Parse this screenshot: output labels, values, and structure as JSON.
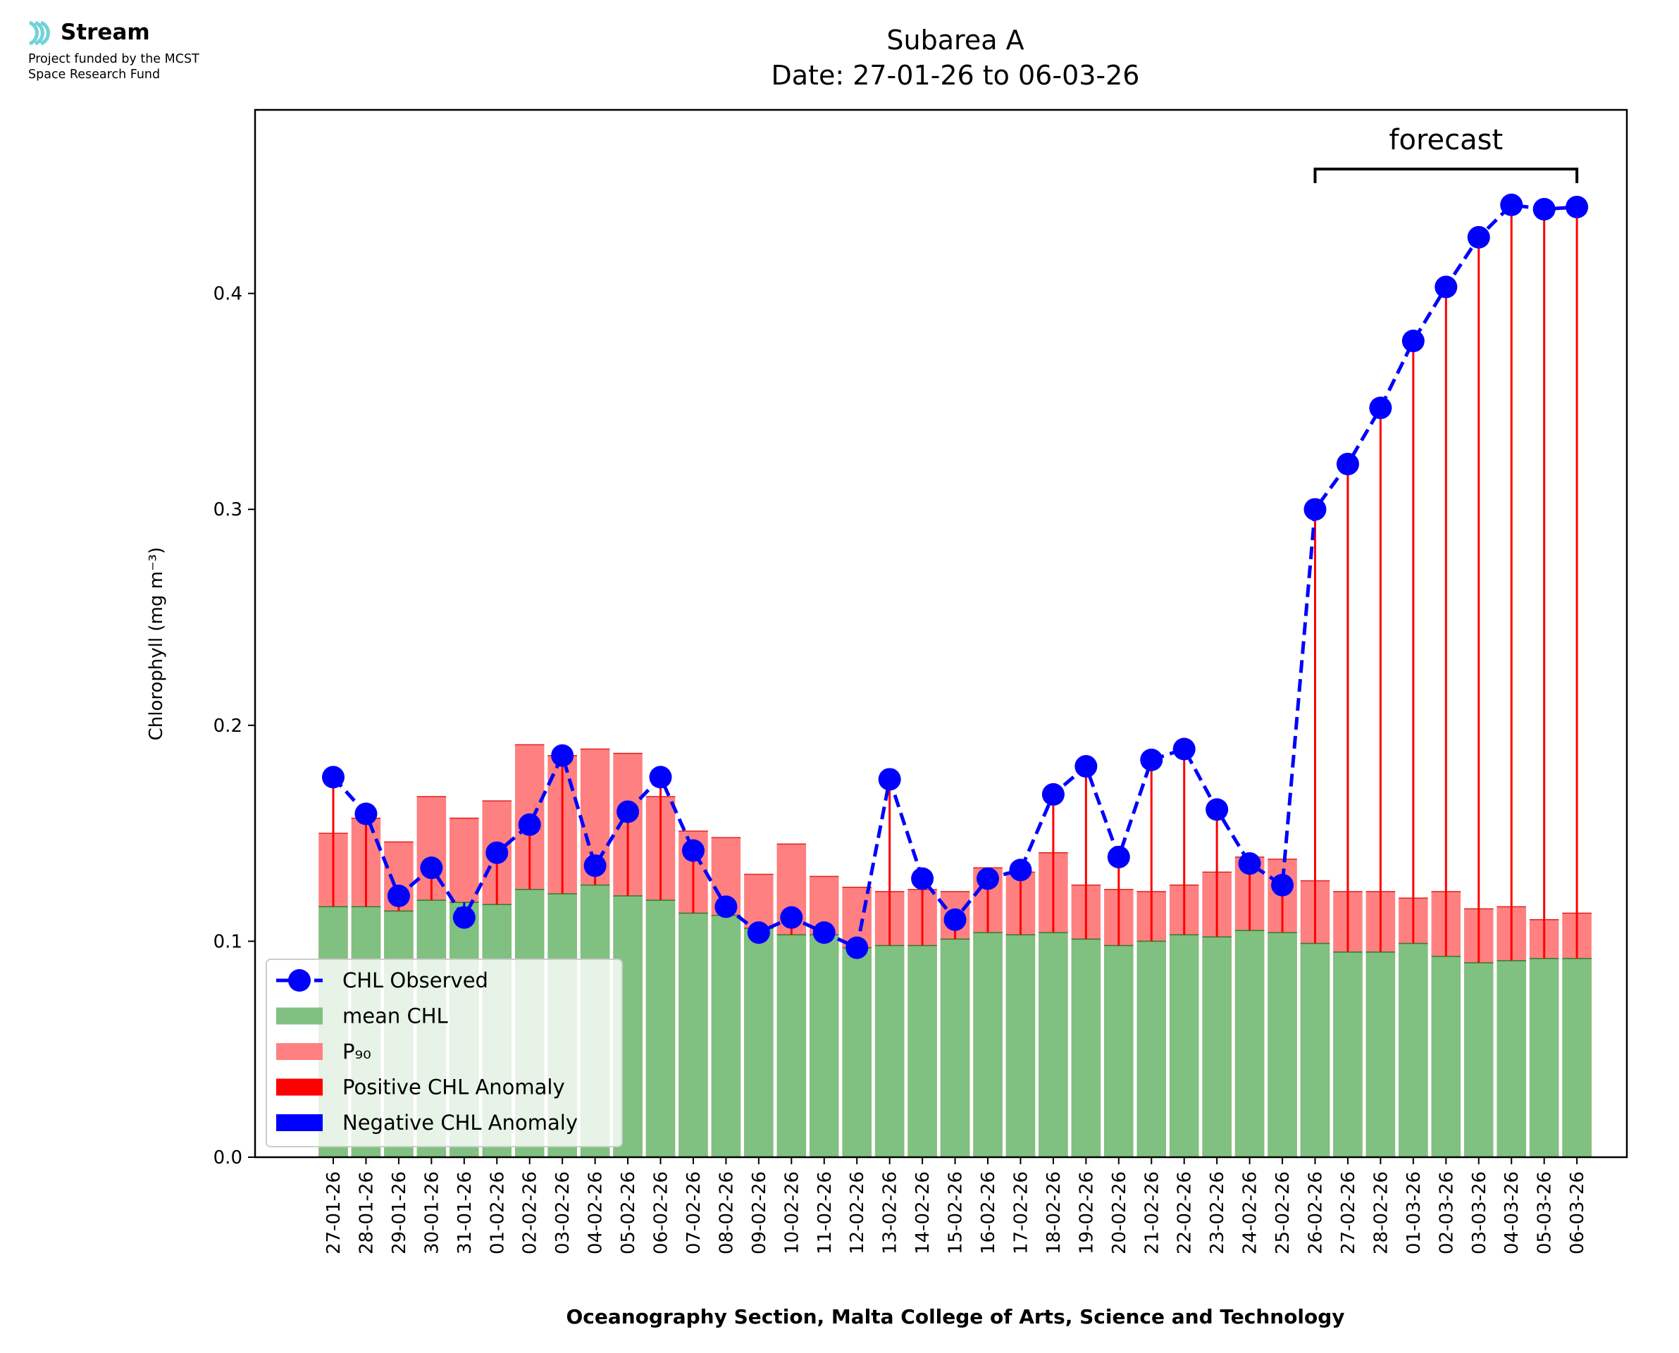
{
  "logo": {
    "name": "Stream",
    "line1": "Project funded by the MCST",
    "line2": "Space Research Fund",
    "color": "#6fd3d6"
  },
  "chart_data": {
    "type": "bar",
    "title": "Subarea A",
    "subtitle": "Date: 27-01-26 to 06-03-26",
    "xlabel": "Oceanography Section, Malta College of Arts, Science and Technology",
    "ylabel": "Chlorophyll (mg m⁻³)",
    "ylim": [
      0,
      0.485
    ],
    "yticks": [
      "0.0",
      "0.1",
      "0.2",
      "0.3",
      "0.4"
    ],
    "categories": [
      "27-01-26",
      "28-01-26",
      "29-01-26",
      "30-01-26",
      "31-01-26",
      "01-02-26",
      "02-02-26",
      "03-02-26",
      "04-02-26",
      "05-02-26",
      "06-02-26",
      "07-02-26",
      "08-02-26",
      "09-02-26",
      "10-02-26",
      "11-02-26",
      "12-02-26",
      "13-02-26",
      "14-02-26",
      "15-02-26",
      "16-02-26",
      "17-02-26",
      "18-02-26",
      "19-02-26",
      "20-02-26",
      "21-02-26",
      "22-02-26",
      "23-02-26",
      "24-02-26",
      "25-02-26",
      "26-02-26",
      "27-02-26",
      "28-02-26",
      "01-03-26",
      "02-03-26",
      "03-03-26",
      "04-03-26",
      "05-03-26",
      "06-03-26"
    ],
    "series": [
      {
        "name": "mean CHL",
        "kind": "bar",
        "color": "#80c080",
        "values": [
          0.116,
          0.116,
          0.114,
          0.119,
          0.118,
          0.117,
          0.124,
          0.122,
          0.126,
          0.121,
          0.119,
          0.113,
          0.112,
          0.106,
          0.103,
          0.103,
          0.097,
          0.098,
          0.098,
          0.101,
          0.104,
          0.103,
          0.104,
          0.101,
          0.098,
          0.1,
          0.103,
          0.102,
          0.105,
          0.104,
          0.099,
          0.095,
          0.095,
          0.099,
          0.093,
          0.09,
          0.091,
          0.092,
          0.092
        ]
      },
      {
        "name": "P₉₀",
        "kind": "bar",
        "color": "#ff8080",
        "values": [
          0.15,
          0.157,
          0.146,
          0.167,
          0.157,
          0.165,
          0.191,
          0.186,
          0.189,
          0.187,
          0.167,
          0.151,
          0.148,
          0.131,
          0.145,
          0.13,
          0.125,
          0.123,
          0.124,
          0.123,
          0.134,
          0.132,
          0.141,
          0.126,
          0.124,
          0.123,
          0.126,
          0.132,
          0.139,
          0.138,
          0.128,
          0.123,
          0.123,
          0.12,
          0.123,
          0.115,
          0.116,
          0.11,
          0.113
        ]
      },
      {
        "name": "CHL Observed",
        "kind": "line",
        "color": "#0000ff",
        "values": [
          0.176,
          0.159,
          0.121,
          0.134,
          0.111,
          0.141,
          0.154,
          0.186,
          0.135,
          0.16,
          0.176,
          0.142,
          0.116,
          0.104,
          0.111,
          0.104,
          0.097,
          0.175,
          0.129,
          0.11,
          0.129,
          0.133,
          0.168,
          0.181,
          0.139,
          0.184,
          0.189,
          0.161,
          0.136,
          0.126,
          0.3,
          0.321,
          0.347,
          0.378,
          0.403,
          0.426,
          0.441,
          0.439,
          0.44
        ]
      }
    ],
    "legend": {
      "position": "lower-left",
      "items": [
        {
          "label": "CHL Observed",
          "color": "#0000ff",
          "kind": "line-marker"
        },
        {
          "label": "mean CHL",
          "color": "#80c080",
          "kind": "patch"
        },
        {
          "label": "P₉₀",
          "color": "#ff8080",
          "kind": "patch"
        },
        {
          "label": "Positive CHL Anomaly",
          "color": "#ff0000",
          "kind": "patch"
        },
        {
          "label": "Negative CHL Anomaly",
          "color": "#0000ff",
          "kind": "patch"
        }
      ]
    },
    "annotation": {
      "text": "forecast",
      "from_index": 30,
      "to_index": 38
    },
    "grid": false
  }
}
